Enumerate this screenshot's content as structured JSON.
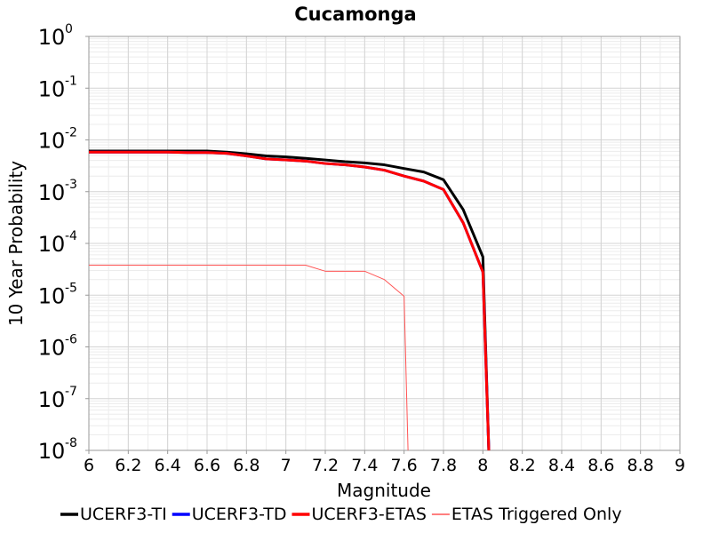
{
  "chart_data": {
    "type": "line",
    "title": "Cucamonga",
    "xlabel": "Magnitude",
    "ylabel": "10 Year Probability",
    "xlim": [
      6,
      9
    ],
    "ylim": [
      1e-08,
      1
    ],
    "yscale": "log",
    "grid": true,
    "legend_position": "bottom",
    "x_ticks": [
      "6",
      "6.2",
      "6.4",
      "6.6",
      "6.8",
      "7",
      "7.2",
      "7.4",
      "7.6",
      "7.8",
      "8",
      "8.2",
      "8.4",
      "8.6",
      "8.8",
      "9"
    ],
    "y_ticks": [
      {
        "base": "10",
        "exp": "0"
      },
      {
        "base": "10",
        "exp": "-1"
      },
      {
        "base": "10",
        "exp": "-2"
      },
      {
        "base": "10",
        "exp": "-3"
      },
      {
        "base": "10",
        "exp": "-4"
      },
      {
        "base": "10",
        "exp": "-5"
      },
      {
        "base": "10",
        "exp": "-6"
      },
      {
        "base": "10",
        "exp": "-7"
      },
      {
        "base": "10",
        "exp": "-8"
      }
    ],
    "series": [
      {
        "name": "UCERF3-TI",
        "color": "#000000",
        "width": 3,
        "x": [
          6.0,
          6.1,
          6.2,
          6.3,
          6.4,
          6.5,
          6.6,
          6.7,
          6.8,
          6.9,
          7.0,
          7.1,
          7.2,
          7.3,
          7.4,
          7.5,
          7.6,
          7.7,
          7.8,
          7.9,
          8.0,
          8.03
        ],
        "y": [
          0.0061,
          0.0061,
          0.0061,
          0.0061,
          0.0061,
          0.0061,
          0.0061,
          0.0058,
          0.0054,
          0.0049,
          0.0047,
          0.0044,
          0.0041,
          0.0038,
          0.0036,
          0.0033,
          0.0028,
          0.0024,
          0.0017,
          0.00045,
          5.5e-05,
          1e-08
        ]
      },
      {
        "name": "UCERF3-TD",
        "color": "#0000ff",
        "width": 3,
        "x": [
          6.0,
          6.1,
          6.2,
          6.3,
          6.4,
          6.5,
          6.6,
          6.7,
          6.8,
          6.9,
          7.0,
          7.1,
          7.2,
          7.3,
          7.4,
          7.5,
          7.6,
          7.7,
          7.8,
          7.9,
          8.0,
          8.03
        ],
        "y": [
          0.0058,
          0.0058,
          0.0058,
          0.0058,
          0.0058,
          0.0057,
          0.0057,
          0.0055,
          0.0049,
          0.0043,
          0.0041,
          0.0039,
          0.0035,
          0.0033,
          0.003,
          0.0026,
          0.002,
          0.0016,
          0.0011,
          0.00025,
          2.8e-05,
          1e-08
        ]
      },
      {
        "name": "UCERF3-ETAS",
        "color": "#ff0000",
        "width": 3,
        "x": [
          6.0,
          6.1,
          6.2,
          6.3,
          6.4,
          6.5,
          6.6,
          6.7,
          6.8,
          6.9,
          7.0,
          7.1,
          7.2,
          7.3,
          7.4,
          7.5,
          7.6,
          7.7,
          7.8,
          7.9,
          8.0,
          8.03
        ],
        "y": [
          0.0058,
          0.0058,
          0.0058,
          0.0058,
          0.0058,
          0.0057,
          0.0057,
          0.0055,
          0.0049,
          0.0043,
          0.0041,
          0.0039,
          0.0035,
          0.0033,
          0.003,
          0.0026,
          0.002,
          0.0016,
          0.0011,
          0.00025,
          2.8e-05,
          1e-08
        ]
      },
      {
        "name": "ETAS Triggered Only",
        "color": "#ff5555",
        "width": 1,
        "x": [
          6.0,
          6.1,
          6.2,
          6.3,
          6.4,
          6.5,
          6.6,
          6.7,
          6.8,
          6.9,
          7.0,
          7.1,
          7.2,
          7.3,
          7.4,
          7.5,
          7.6,
          7.62
        ],
        "y": [
          3.8e-05,
          3.8e-05,
          3.8e-05,
          3.8e-05,
          3.8e-05,
          3.8e-05,
          3.8e-05,
          3.8e-05,
          3.8e-05,
          3.8e-05,
          3.8e-05,
          3.8e-05,
          2.9e-05,
          2.9e-05,
          2.9e-05,
          2e-05,
          9.5e-06,
          1e-08
        ]
      }
    ]
  }
}
